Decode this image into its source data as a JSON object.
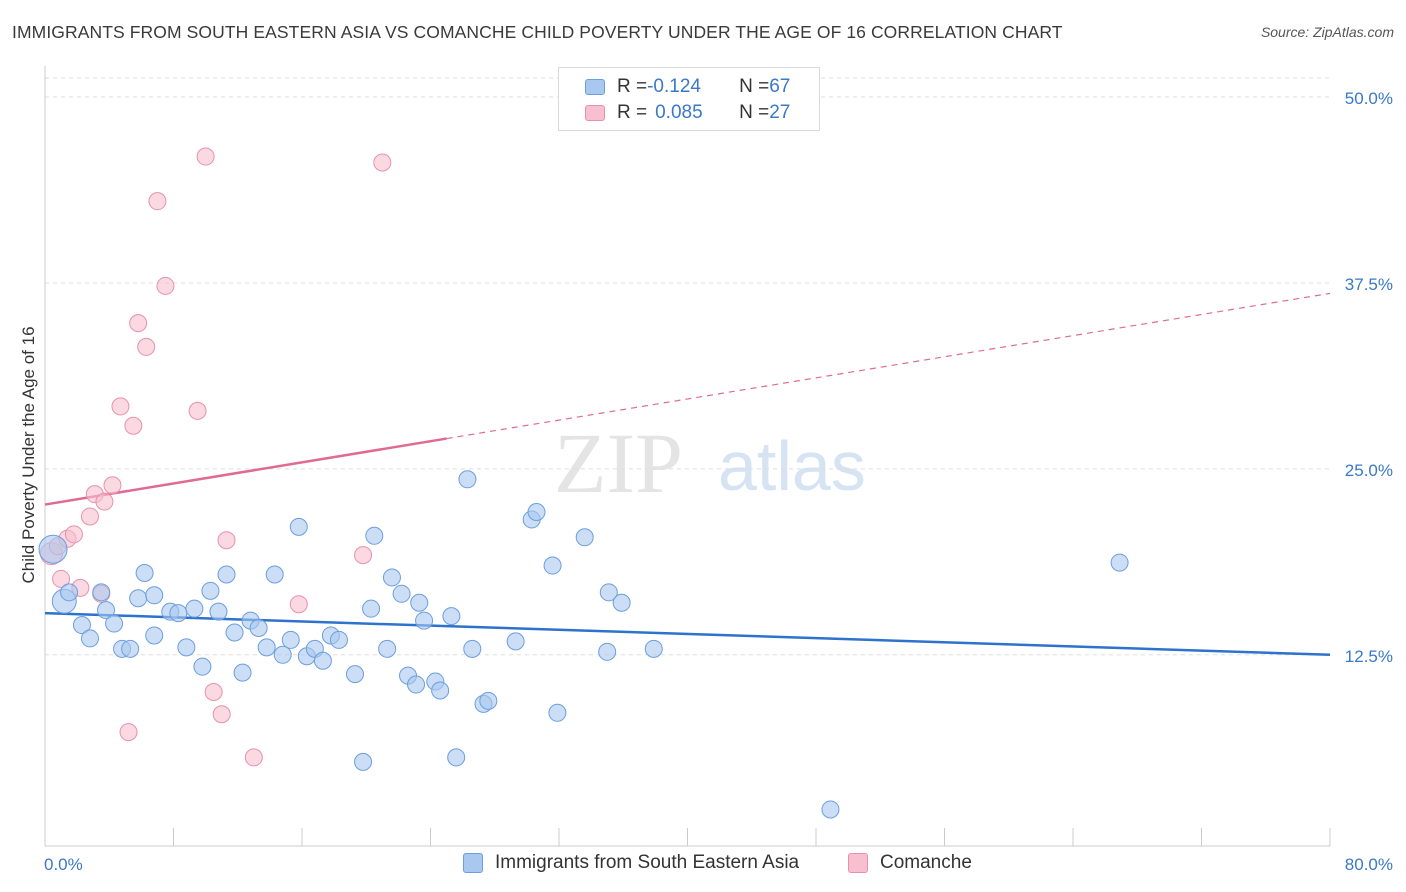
{
  "header": {
    "title": "IMMIGRANTS FROM SOUTH EASTERN ASIA VS COMANCHE CHILD POVERTY UNDER THE AGE OF 16 CORRELATION CHART",
    "source": "Source: ZipAtlas.com"
  },
  "legend": {
    "rows": [
      {
        "r_label": "R = ",
        "r_value": "-0.124",
        "n_label": "N = ",
        "n_value": "67"
      },
      {
        "r_label": "R = ",
        "r_value": "0.085",
        "n_label": "N = ",
        "n_value": "27"
      }
    ]
  },
  "bottom_legend": {
    "series_1": "Immigrants from South Eastern Asia",
    "series_2": "Comanche"
  },
  "watermark": {
    "zip": "ZIP",
    "atlas": "atlas"
  },
  "colors": {
    "blue_fill": "#a9c8ef",
    "blue_stroke": "#6b9ee0",
    "blue_line": "#2d72cc",
    "pink_fill": "#f7bfd0",
    "pink_stroke": "#ea90ad",
    "pink_line": "#e06b92",
    "axis_label": "#3a78c9"
  },
  "chart_data": {
    "type": "scatter",
    "title": "IMMIGRANTS FROM SOUTH EASTERN ASIA VS COMANCHE CHILD POVERTY UNDER THE AGE OF 16 CORRELATION CHART",
    "xlabel": "",
    "ylabel": "Child Poverty Under the Age of 16",
    "xlim": [
      0,
      80
    ],
    "ylim": [
      0,
      50
    ],
    "x_tick_labels": [
      "0.0%",
      "80.0%"
    ],
    "y_ticks": [
      12.5,
      25.0,
      37.5,
      50.0
    ],
    "y_tick_labels": [
      "12.5%",
      "25.0%",
      "37.5%",
      "50.0%"
    ],
    "grid": "horizontal dashed",
    "legend_position": "top-center",
    "series": [
      {
        "name": "Immigrants from South Eastern Asia",
        "r": -0.124,
        "n": 67,
        "trend": {
          "x": [
            0,
            80
          ],
          "y": [
            15.3,
            12.5
          ],
          "style": "solid"
        },
        "points": [
          [
            0.5,
            19.6
          ],
          [
            1.2,
            16.1
          ],
          [
            1.5,
            16.7
          ],
          [
            2.3,
            14.5
          ],
          [
            2.8,
            13.6
          ],
          [
            3.5,
            16.7
          ],
          [
            3.8,
            15.5
          ],
          [
            4.3,
            14.6
          ],
          [
            4.8,
            12.9
          ],
          [
            5.3,
            12.9
          ],
          [
            5.8,
            16.3
          ],
          [
            6.2,
            18.0
          ],
          [
            6.8,
            16.5
          ],
          [
            6.8,
            13.8
          ],
          [
            7.8,
            15.4
          ],
          [
            8.3,
            15.3
          ],
          [
            8.8,
            13.0
          ],
          [
            9.3,
            15.6
          ],
          [
            9.8,
            11.7
          ],
          [
            10.3,
            16.8
          ],
          [
            10.8,
            15.4
          ],
          [
            11.3,
            17.9
          ],
          [
            11.8,
            14.0
          ],
          [
            12.3,
            11.3
          ],
          [
            12.8,
            14.8
          ],
          [
            13.3,
            14.3
          ],
          [
            13.8,
            13.0
          ],
          [
            14.3,
            17.9
          ],
          [
            14.8,
            12.5
          ],
          [
            15.3,
            13.5
          ],
          [
            15.8,
            21.1
          ],
          [
            16.3,
            12.4
          ],
          [
            16.8,
            12.9
          ],
          [
            17.3,
            12.1
          ],
          [
            17.8,
            13.8
          ],
          [
            18.3,
            13.5
          ],
          [
            19.3,
            11.2
          ],
          [
            19.8,
            5.3
          ],
          [
            20.3,
            15.6
          ],
          [
            20.5,
            20.5
          ],
          [
            21.3,
            12.9
          ],
          [
            21.6,
            17.7
          ],
          [
            22.2,
            16.6
          ],
          [
            22.6,
            11.1
          ],
          [
            23.1,
            10.5
          ],
          [
            23.3,
            16.0
          ],
          [
            23.6,
            14.8
          ],
          [
            24.3,
            10.7
          ],
          [
            24.6,
            10.1
          ],
          [
            25.3,
            15.1
          ],
          [
            25.6,
            5.6
          ],
          [
            26.3,
            24.3
          ],
          [
            26.6,
            12.9
          ],
          [
            27.3,
            9.2
          ],
          [
            27.6,
            9.4
          ],
          [
            29.3,
            13.4
          ],
          [
            30.3,
            21.6
          ],
          [
            30.6,
            22.1
          ],
          [
            31.6,
            18.5
          ],
          [
            31.9,
            8.6
          ],
          [
            33.6,
            20.4
          ],
          [
            35.0,
            12.7
          ],
          [
            35.1,
            16.7
          ],
          [
            35.9,
            16.0
          ],
          [
            37.9,
            12.9
          ],
          [
            48.9,
            2.1
          ],
          [
            66.9,
            18.7
          ]
        ]
      },
      {
        "name": "Comanche",
        "r": 0.085,
        "n": 27,
        "trend": {
          "x": [
            0,
            80
          ],
          "y": [
            22.6,
            36.8
          ],
          "solid_until_x": 25
        },
        "points": [
          [
            0.4,
            19.3
          ],
          [
            0.8,
            19.8
          ],
          [
            1.0,
            17.6
          ],
          [
            1.4,
            20.3
          ],
          [
            1.8,
            20.6
          ],
          [
            2.2,
            17.0
          ],
          [
            2.8,
            21.8
          ],
          [
            3.1,
            23.3
          ],
          [
            3.5,
            16.6
          ],
          [
            3.7,
            22.8
          ],
          [
            4.2,
            23.9
          ],
          [
            4.7,
            29.2
          ],
          [
            5.2,
            7.3
          ],
          [
            5.5,
            27.9
          ],
          [
            5.8,
            34.8
          ],
          [
            6.3,
            33.2
          ],
          [
            7.0,
            43.0
          ],
          [
            7.5,
            37.3
          ],
          [
            9.5,
            28.9
          ],
          [
            10.0,
            46.0
          ],
          [
            10.5,
            10.0
          ],
          [
            11.0,
            8.5
          ],
          [
            11.3,
            20.2
          ],
          [
            13.0,
            5.6
          ],
          [
            15.8,
            15.9
          ],
          [
            19.8,
            19.2
          ],
          [
            21.0,
            45.6
          ]
        ]
      }
    ]
  }
}
